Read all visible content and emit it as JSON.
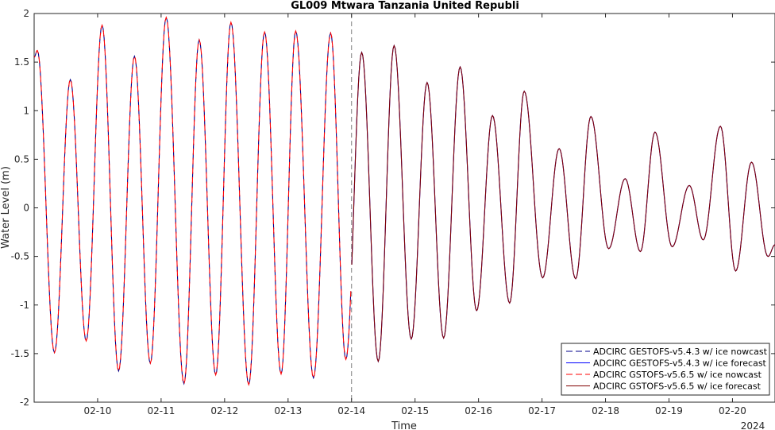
{
  "chart_data": {
    "type": "line",
    "title": "GL009 Mtwara Tanzania United Republi",
    "xlabel": "Time",
    "ylabel": "Water Level (m)",
    "year_label": "2024",
    "x_tick_labels": [
      "02-10",
      "02-11",
      "02-12",
      "02-13",
      "02-14",
      "02-15",
      "02-16",
      "02-17",
      "02-18",
      "02-19",
      "02-20"
    ],
    "x_tick_values": [
      10,
      11,
      12,
      13,
      14,
      15,
      16,
      17,
      18,
      19,
      20
    ],
    "xlim": [
      9.0,
      20.67
    ],
    "ylim": [
      -2,
      2
    ],
    "y_tick_values": [
      -2,
      -1.5,
      -1,
      -0.5,
      0,
      0.5,
      1,
      1.5,
      2
    ],
    "y_tick_labels": [
      "-2",
      "-1.5",
      "-1",
      "-0.5",
      "0",
      "0.5",
      "1",
      "1.5",
      "2"
    ],
    "divider_x": 14.0,
    "grid": false,
    "legend_position": "bottom-right",
    "extrema": {
      "x": [
        9.05,
        9.32,
        9.57,
        9.82,
        10.07,
        10.33,
        10.58,
        10.83,
        11.08,
        11.36,
        11.6,
        11.86,
        12.1,
        12.38,
        12.63,
        12.89,
        13.12,
        13.4,
        13.67,
        13.91,
        14.16,
        14.42,
        14.67,
        14.94,
        15.19,
        15.45,
        15.71,
        15.97,
        16.22,
        16.49,
        16.72,
        17.01,
        17.27,
        17.53,
        17.77,
        18.05,
        18.31,
        18.55,
        18.78,
        19.05,
        19.32,
        19.54,
        19.81,
        20.05,
        20.3,
        20.56
      ],
      "y": [
        1.62,
        -1.49,
        1.32,
        -1.37,
        1.88,
        -1.68,
        1.56,
        -1.6,
        1.96,
        -1.81,
        1.73,
        -1.72,
        1.91,
        -1.82,
        1.81,
        -1.71,
        1.82,
        -1.75,
        1.8,
        -1.56,
        1.6,
        -1.58,
        1.67,
        -1.35,
        1.29,
        -1.34,
        1.45,
        -1.06,
        0.95,
        -0.98,
        1.2,
        -0.72,
        0.61,
        -0.73,
        0.94,
        -0.42,
        0.3,
        -0.45,
        0.78,
        -0.4,
        0.23,
        -0.33,
        0.84,
        -0.65,
        0.47,
        -0.5
      ]
    },
    "start": {
      "x": 9.0,
      "y": 1.55
    },
    "end": {
      "x": 20.67,
      "y": -0.38
    },
    "series": [
      {
        "name": "ADCIRC GESTOFS-v5.4.3 w/ ice nowcast",
        "color": "#00008B",
        "style": "dashed",
        "segment": "nowcast"
      },
      {
        "name": "ADCIRC GESTOFS-v5.4.3 w/ ice forecast",
        "color": "#0000FF",
        "style": "solid",
        "segment": "forecast"
      },
      {
        "name": "ADCIRC GSTOFS-v5.6.5 w/ ice nowcast",
        "color": "#FF0000",
        "style": "dashed",
        "segment": "nowcast"
      },
      {
        "name": "ADCIRC GSTOFS-v5.6.5 w/ ice forecast",
        "color": "#800000",
        "style": "solid",
        "segment": "forecast"
      }
    ]
  }
}
